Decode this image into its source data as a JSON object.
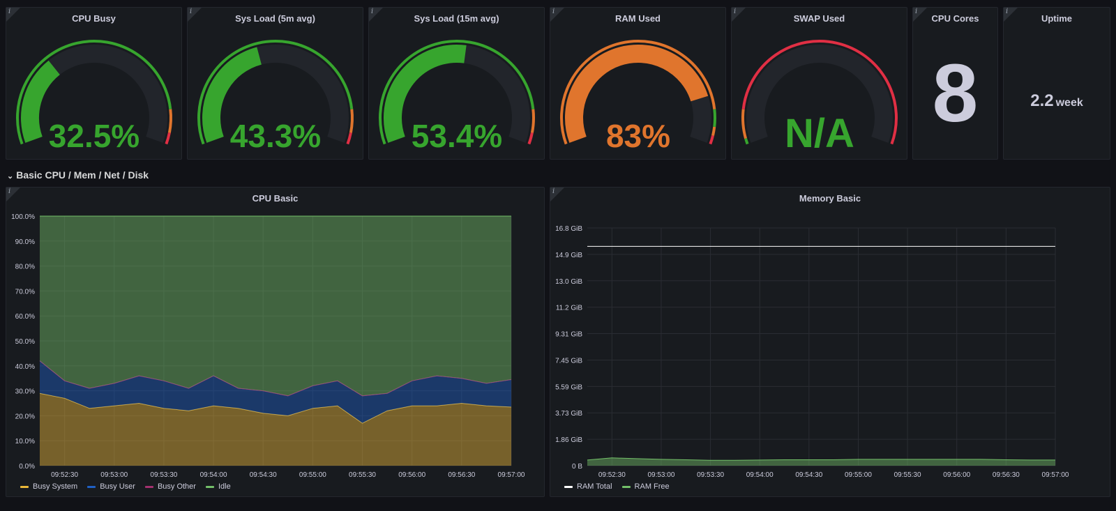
{
  "gauges": [
    {
      "title": "CPU Busy",
      "value": "32.5%",
      "fraction": 0.325,
      "color": "#37a52e"
    },
    {
      "title": "Sys Load (5m avg)",
      "value": "43.3%",
      "fraction": 0.433,
      "color": "#37a52e"
    },
    {
      "title": "Sys Load (15m avg)",
      "value": "53.4%",
      "fraction": 0.534,
      "color": "#37a52e"
    },
    {
      "title": "RAM Used",
      "value": "83%",
      "fraction": 0.83,
      "color": "#e0752d"
    },
    {
      "title": "SWAP Used",
      "value": "N/A",
      "fraction": 0,
      "color": "#37a52e"
    }
  ],
  "cpu_cores": {
    "title": "CPU Cores",
    "value": "8"
  },
  "uptime": {
    "title": "Uptime",
    "value": "2.2",
    "unit": "week"
  },
  "info_glyph": "i",
  "row_header": {
    "title": "Basic CPU / Mem / Net / Disk"
  },
  "cpu_panel": {
    "title": "CPU Basic"
  },
  "mem_panel": {
    "title": "Memory Basic"
  },
  "chart_data": [
    {
      "type": "area",
      "title": "CPU Basic",
      "x": [
        "09:52:15",
        "09:52:30",
        "09:52:45",
        "09:53:00",
        "09:53:15",
        "09:53:30",
        "09:53:45",
        "09:54:00",
        "09:54:15",
        "09:54:30",
        "09:54:45",
        "09:55:00",
        "09:55:15",
        "09:55:30",
        "09:55:45",
        "09:56:00",
        "09:56:15",
        "09:56:30",
        "09:56:45",
        "09:57:00"
      ],
      "xticks": [
        "09:52:30",
        "09:53:00",
        "09:53:30",
        "09:54:00",
        "09:54:30",
        "09:55:00",
        "09:55:30",
        "09:56:00",
        "09:56:30",
        "09:57:00"
      ],
      "yticks": [
        "0.0%",
        "10.0%",
        "20.0%",
        "30.0%",
        "40.0%",
        "50.0%",
        "60.0%",
        "70.0%",
        "80.0%",
        "90.0%",
        "100.0%"
      ],
      "ylim": [
        0,
        100
      ],
      "stacked": true,
      "series": [
        {
          "name": "Busy System",
          "color": "#eab839",
          "values": [
            29,
            27,
            23,
            24,
            25,
            23,
            22,
            24,
            23,
            21,
            20,
            23,
            24,
            17,
            22,
            24,
            24,
            25,
            24,
            23.5
          ]
        },
        {
          "name": "Busy User",
          "color": "#1f60c4",
          "values": [
            13,
            7,
            8,
            9,
            11,
            11,
            9,
            12,
            8,
            9,
            8,
            9,
            10,
            11,
            7,
            10,
            12,
            10,
            9,
            11
          ]
        },
        {
          "name": "Busy Other",
          "color": "#a3316f",
          "values": [
            0,
            0,
            0,
            0,
            0,
            0,
            0,
            0,
            0,
            0,
            0,
            0,
            0,
            0,
            0,
            0,
            0,
            0,
            0,
            0
          ]
        },
        {
          "name": "Idle",
          "color": "#73bf69",
          "values": [
            58,
            66,
            69,
            67,
            64,
            66,
            69,
            64,
            69,
            70,
            72,
            68,
            66,
            72,
            71,
            66,
            64,
            65,
            67,
            65.5
          ]
        }
      ]
    },
    {
      "type": "line",
      "title": "Memory Basic",
      "x": [
        "09:52:15",
        "09:52:30",
        "09:52:45",
        "09:53:00",
        "09:53:15",
        "09:53:30",
        "09:53:45",
        "09:54:00",
        "09:54:15",
        "09:54:30",
        "09:54:45",
        "09:55:00",
        "09:55:15",
        "09:55:30",
        "09:55:45",
        "09:56:00",
        "09:56:15",
        "09:56:30",
        "09:56:45",
        "09:57:00"
      ],
      "xticks": [
        "09:52:30",
        "09:53:00",
        "09:53:30",
        "09:54:00",
        "09:54:30",
        "09:55:00",
        "09:55:30",
        "09:56:00",
        "09:56:30",
        "09:57:00"
      ],
      "yticks": [
        "0 B",
        "1.86 GiB",
        "3.73 GiB",
        "5.59 GiB",
        "7.45 GiB",
        "9.31 GiB",
        "11.2 GiB",
        "13.0 GiB",
        "14.9 GiB",
        "16.8 GiB"
      ],
      "ylim": [
        0,
        16.8
      ],
      "series": [
        {
          "name": "RAM Total",
          "color": "#ffffff",
          "values": [
            15.5,
            15.5,
            15.5,
            15.5,
            15.5,
            15.5,
            15.5,
            15.5,
            15.5,
            15.5,
            15.5,
            15.5,
            15.5,
            15.5,
            15.5,
            15.5,
            15.5,
            15.5,
            15.5,
            15.5
          ]
        },
        {
          "name": "RAM Free",
          "color": "#73bf69",
          "fill": true,
          "values": [
            0.4,
            0.55,
            0.5,
            0.45,
            0.42,
            0.38,
            0.38,
            0.4,
            0.42,
            0.42,
            0.42,
            0.45,
            0.45,
            0.45,
            0.45,
            0.45,
            0.45,
            0.42,
            0.4,
            0.4
          ]
        }
      ]
    }
  ]
}
